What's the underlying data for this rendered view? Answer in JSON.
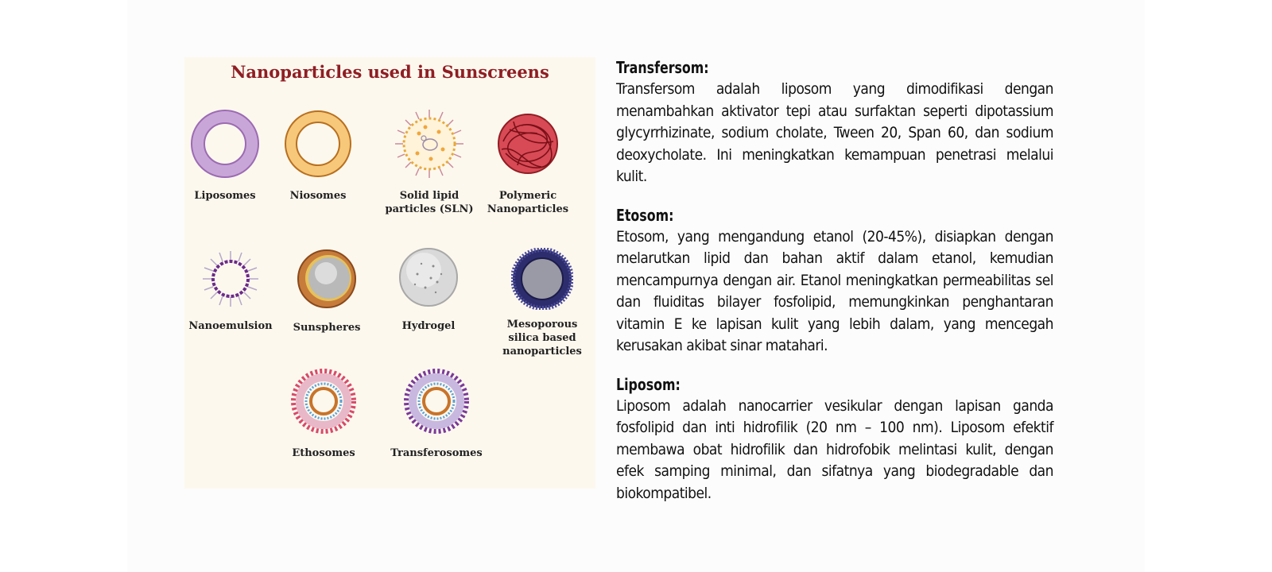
{
  "figure": {
    "title": "Nanoparticles used in Sunscreens",
    "items": [
      {
        "label": "Liposomes",
        "icon": "liposome-icon"
      },
      {
        "label": "Niosomes",
        "icon": "niosome-icon"
      },
      {
        "label": "Solid lipid particles (SLN)",
        "icon": "solid-lipid-particle-icon"
      },
      {
        "label": "Polymeric Nanoparticles",
        "icon": "polymeric-nanoparticle-icon"
      },
      {
        "label": "Nanoemulsion",
        "icon": "nanoemulsion-icon"
      },
      {
        "label": "Sunspheres",
        "icon": "sunsphere-icon"
      },
      {
        "label": "Hydrogel",
        "icon": "hydrogel-icon"
      },
      {
        "label": "Mesoporous silica based nanoparticles",
        "icon": "mesoporous-silica-icon"
      },
      {
        "label": "Ethosomes",
        "icon": "ethosome-icon"
      },
      {
        "label": "Transferosomes",
        "icon": "transferosome-icon"
      }
    ]
  },
  "sections": [
    {
      "heading": "Transfersom:",
      "body": "Transfersom adalah liposom yang dimodifikasi dengan menambahkan aktivator tepi atau surfaktan seperti dipotassium glycyrrhizinate, sodium cholate, Tween 20, Span 60, dan sodium deoxycholate. Ini meningkatkan kemampuan penetrasi melalui kulit."
    },
    {
      "heading": "Etosom:",
      "body": "Etosom, yang mengandung etanol (20-45%), disiapkan dengan melarutkan lipid dan bahan aktif dalam etanol, kemudian mencampurnya dengan air. Etanol meningkatkan permeabilitas sel dan fluiditas bilayer fosfolipid, memungkinkan penghantaran vitamin E ke lapisan kulit yang lebih dalam, yang mencegah kerusakan akibat sinar matahari."
    },
    {
      "heading": "Liposom:",
      "body": "Liposom adalah nanocarrier vesikular dengan lapisan ganda fosfolipid dan inti hidrofilik (20 nm – 100 nm). Liposom efektif membawa obat hidrofilik dan hidrofobik melintasi kulit, dengan efek samping minimal, dan sifatnya yang biodegradable dan biokompatibel."
    }
  ]
}
